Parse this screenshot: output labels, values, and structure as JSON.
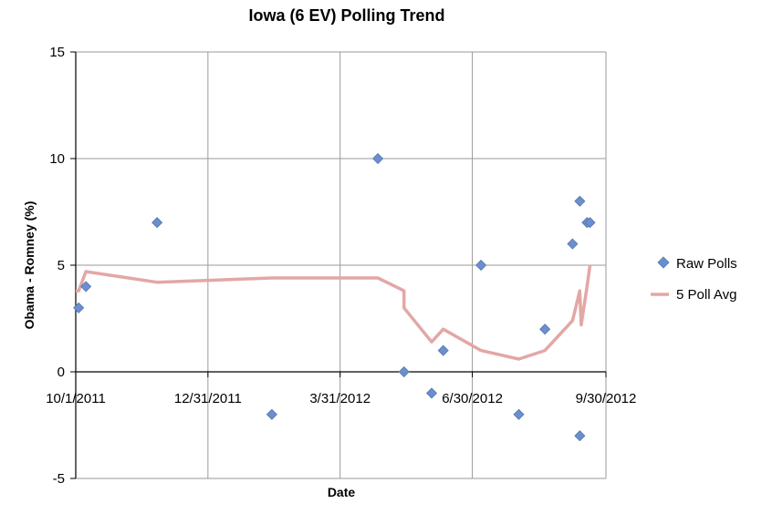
{
  "chart_data": {
    "type": "scatter",
    "title": "Iowa (6 EV) Polling Trend",
    "xlabel": "Date",
    "ylabel": "Obama - Romney (%)",
    "xlim": [
      "2011-10-01",
      "2012-09-30"
    ],
    "ylim": [
      -5,
      15
    ],
    "x_ticks": [
      "10/1/2011",
      "12/31/2011",
      "3/31/2012",
      "6/30/2012",
      "9/30/2012"
    ],
    "y_ticks": [
      -5,
      0,
      5,
      10,
      15
    ],
    "grid": true,
    "legend_position": "right",
    "series": [
      {
        "name": "Raw Polls",
        "kind": "scatter",
        "marker": "diamond",
        "color": "#6a8fcc",
        "points": [
          {
            "x": "2011-10-03",
            "y": 3
          },
          {
            "x": "2011-10-08",
            "y": 4
          },
          {
            "x": "2011-11-26",
            "y": 7
          },
          {
            "x": "2012-02-13",
            "y": -2
          },
          {
            "x": "2012-04-26",
            "y": 10
          },
          {
            "x": "2012-05-14",
            "y": 0
          },
          {
            "x": "2012-06-02",
            "y": -1
          },
          {
            "x": "2012-06-10",
            "y": 1
          },
          {
            "x": "2012-07-06",
            "y": 5
          },
          {
            "x": "2012-08-01",
            "y": -2
          },
          {
            "x": "2012-08-19",
            "y": 2
          },
          {
            "x": "2012-09-07",
            "y": 6
          },
          {
            "x": "2012-09-12",
            "y": -3
          },
          {
            "x": "2012-09-12",
            "y": 8
          },
          {
            "x": "2012-09-17",
            "y": 7
          },
          {
            "x": "2012-09-19",
            "y": 7
          }
        ]
      },
      {
        "name": "5 Poll Avg",
        "kind": "line",
        "color": "#e3a7a5",
        "points": [
          {
            "x": "2011-10-01",
            "y": 3.8
          },
          {
            "x": "2011-10-03",
            "y": 3.8
          },
          {
            "x": "2011-10-08",
            "y": 4.7
          },
          {
            "x": "2011-11-26",
            "y": 4.2
          },
          {
            "x": "2012-02-13",
            "y": 4.4
          },
          {
            "x": "2012-04-26",
            "y": 4.4
          },
          {
            "x": "2012-05-14",
            "y": 3.8
          },
          {
            "x": "2012-05-14",
            "y": 3.0
          },
          {
            "x": "2012-06-02",
            "y": 1.4
          },
          {
            "x": "2012-06-10",
            "y": 2.0
          },
          {
            "x": "2012-07-06",
            "y": 1.0
          },
          {
            "x": "2012-08-01",
            "y": 0.6
          },
          {
            "x": "2012-08-19",
            "y": 1.0
          },
          {
            "x": "2012-09-07",
            "y": 2.4
          },
          {
            "x": "2012-09-12",
            "y": 3.8
          },
          {
            "x": "2012-09-13",
            "y": 2.2
          },
          {
            "x": "2012-09-17",
            "y": 4.0
          },
          {
            "x": "2012-09-19",
            "y": 5.0
          }
        ]
      }
    ]
  }
}
